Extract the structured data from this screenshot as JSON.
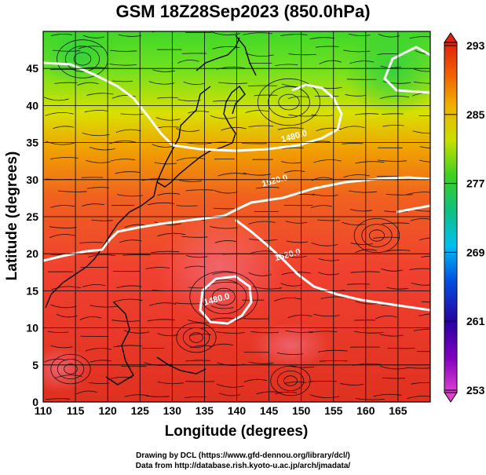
{
  "title": "GSM 18Z28Sep2023 (850.0hPa)",
  "axes": {
    "xlabel": "Longitude (degrees)",
    "ylabel": "Latitude  (degrees)",
    "xlim": [
      110,
      170
    ],
    "ylim": [
      0,
      50
    ],
    "xticks": [
      110,
      115,
      120,
      125,
      130,
      135,
      140,
      145,
      150,
      155,
      160,
      165
    ],
    "yticks": [
      0,
      5,
      10,
      15,
      20,
      25,
      30,
      35,
      40,
      45
    ],
    "grid": true
  },
  "colorbar": {
    "min": 253,
    "max": 293,
    "labels": [
      "293",
      "285",
      "277",
      "269",
      "261",
      "253"
    ],
    "colors": [
      "#e040d0",
      "#2a00a0",
      "#0050e0",
      "#00c0f0",
      "#10c070",
      "#40d020",
      "#c8e000",
      "#f0b000",
      "#f06000",
      "#e02010"
    ]
  },
  "contours": {
    "color": "#ffffff",
    "labels": [
      {
        "text": "1480.0",
        "lon": 149,
        "lat": 35.5
      },
      {
        "text": "1520.0",
        "lon": 146,
        "lat": 29.5
      },
      {
        "text": "1520.0",
        "lon": 148,
        "lat": 19.5
      },
      {
        "text": "1480.0",
        "lon": 137,
        "lat": 13.5
      }
    ]
  },
  "credits": {
    "line1": "Drawing by DCL (https://www.gfd-dennou.org/library/dcl/)",
    "line2": "Data from http://database.rish.kyoto-u.ac.jp/arch/jmadata/"
  }
}
